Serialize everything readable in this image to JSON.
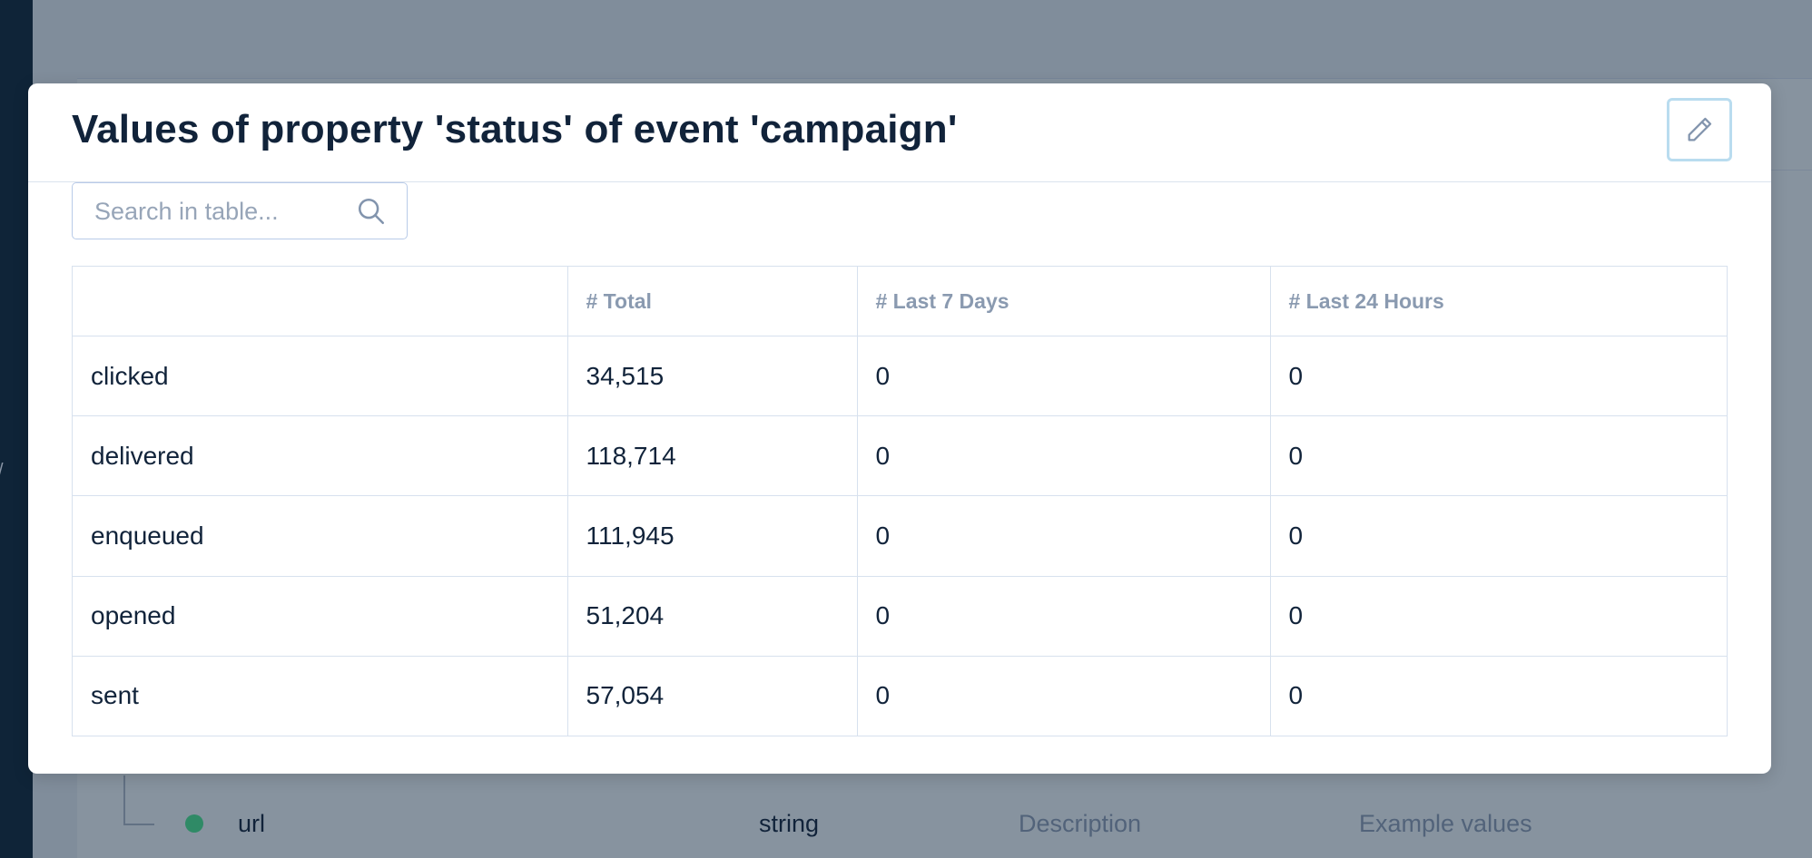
{
  "background": {
    "sidebar_glyph": "/",
    "property_row": {
      "name": "url",
      "type": "string",
      "description_placeholder": "Description",
      "example_placeholder": "Example values"
    }
  },
  "modal": {
    "title": "Values of property 'status' of event 'campaign'",
    "edit_icon": "pencil-icon",
    "search": {
      "placeholder": "Search in table...",
      "value": "",
      "icon": "search-icon"
    },
    "table": {
      "columns": [
        "",
        "# Total",
        "# Last 7 Days",
        "# Last 24 Hours"
      ],
      "rows": [
        {
          "value": "clicked",
          "total": "34,515",
          "last7": "0",
          "last24": "0"
        },
        {
          "value": "delivered",
          "total": "118,714",
          "last7": "0",
          "last24": "0"
        },
        {
          "value": "enqueued",
          "total": "111,945",
          "last7": "0",
          "last24": "0"
        },
        {
          "value": "opened",
          "total": "51,204",
          "last7": "0",
          "last24": "0"
        },
        {
          "value": "sent",
          "total": "57,054",
          "last7": "0",
          "last24": "0"
        }
      ]
    }
  },
  "colors": {
    "overlay_bg": "#808d9b",
    "sidebar_bg": "#0f2438",
    "title_text": "#11233a",
    "header_text": "#8a9ab0",
    "border": "#d7e1ee",
    "edit_border": "#b9dcef",
    "dot_green": "#2f8a66"
  }
}
